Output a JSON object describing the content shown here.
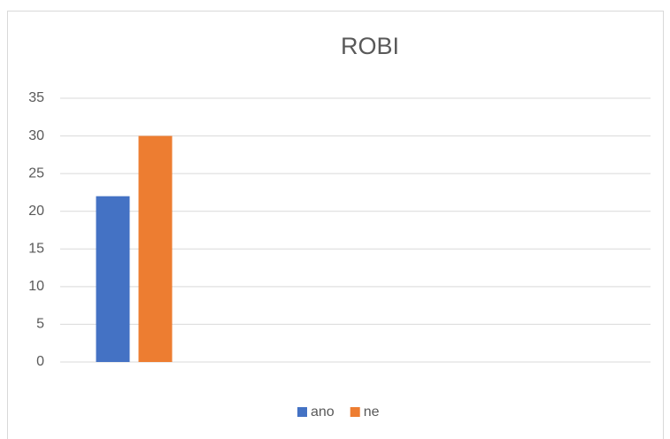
{
  "chart_data": {
    "type": "bar",
    "title": "ROBI",
    "categories": [
      null
    ],
    "series": [
      {
        "name": "ano",
        "color": "#4472c4",
        "values": [
          22
        ]
      },
      {
        "name": "ne",
        "color": "#ed7d31",
        "values": [
          30
        ]
      }
    ],
    "ylim": [
      0,
      35
    ],
    "yticks": [
      0,
      5,
      10,
      15,
      20,
      25,
      30,
      35
    ],
    "grid": true,
    "legend": "bottom"
  }
}
